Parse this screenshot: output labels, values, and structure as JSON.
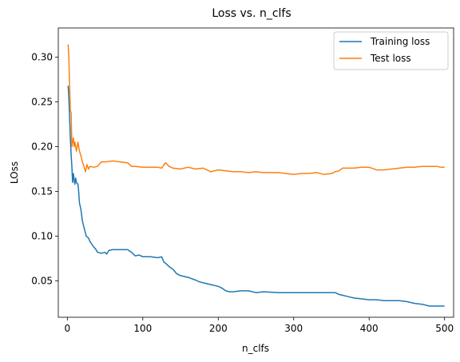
{
  "chart_data": {
    "type": "line",
    "title": "Loss vs. n_clfs",
    "xlabel": "n_clfs",
    "ylabel": "LOss",
    "xlim": [
      -12,
      512
    ],
    "ylim": [
      0.0095,
      0.3325
    ],
    "xticks": [
      0,
      100,
      200,
      300,
      400,
      500
    ],
    "xtick_labels": [
      "0",
      "100",
      "200",
      "300",
      "400",
      "500"
    ],
    "yticks": [
      0.05,
      0.1,
      0.15,
      0.2,
      0.25,
      0.3
    ],
    "ytick_labels": [
      "0.05",
      "0.10",
      "0.15",
      "0.20",
      "0.25",
      "0.30"
    ],
    "grid": false,
    "legend_position": "top-right",
    "series": [
      {
        "name": "Training loss",
        "color": "#1f77b4",
        "points": [
          [
            1,
            0.268
          ],
          [
            2,
            0.255
          ],
          [
            3,
            0.231
          ],
          [
            4,
            0.21
          ],
          [
            5,
            0.19
          ],
          [
            6,
            0.178
          ],
          [
            7,
            0.16
          ],
          [
            8,
            0.17
          ],
          [
            9,
            0.163
          ],
          [
            10,
            0.158
          ],
          [
            11,
            0.165
          ],
          [
            12,
            0.16
          ],
          [
            14,
            0.158
          ],
          [
            15,
            0.15
          ],
          [
            16,
            0.137
          ],
          [
            18,
            0.13
          ],
          [
            20,
            0.117
          ],
          [
            22,
            0.11
          ],
          [
            25,
            0.1
          ],
          [
            28,
            0.098
          ],
          [
            30,
            0.094
          ],
          [
            35,
            0.088
          ],
          [
            38,
            0.085
          ],
          [
            40,
            0.082
          ],
          [
            45,
            0.081
          ],
          [
            50,
            0.082
          ],
          [
            52,
            0.08
          ],
          [
            55,
            0.084
          ],
          [
            60,
            0.085
          ],
          [
            70,
            0.085
          ],
          [
            80,
            0.085
          ],
          [
            85,
            0.082
          ],
          [
            90,
            0.078
          ],
          [
            95,
            0.079
          ],
          [
            100,
            0.077
          ],
          [
            110,
            0.077
          ],
          [
            120,
            0.076
          ],
          [
            125,
            0.077
          ],
          [
            128,
            0.071
          ],
          [
            130,
            0.07
          ],
          [
            135,
            0.066
          ],
          [
            140,
            0.063
          ],
          [
            145,
            0.058
          ],
          [
            150,
            0.056
          ],
          [
            160,
            0.054
          ],
          [
            170,
            0.051
          ],
          [
            175,
            0.049
          ],
          [
            180,
            0.048
          ],
          [
            190,
            0.046
          ],
          [
            200,
            0.044
          ],
          [
            205,
            0.042
          ],
          [
            210,
            0.039
          ],
          [
            215,
            0.038
          ],
          [
            220,
            0.038
          ],
          [
            230,
            0.039
          ],
          [
            240,
            0.039
          ],
          [
            250,
            0.037
          ],
          [
            260,
            0.038
          ],
          [
            280,
            0.037
          ],
          [
            300,
            0.037
          ],
          [
            320,
            0.037
          ],
          [
            340,
            0.037
          ],
          [
            355,
            0.037
          ],
          [
            360,
            0.035
          ],
          [
            365,
            0.034
          ],
          [
            370,
            0.033
          ],
          [
            375,
            0.032
          ],
          [
            380,
            0.031
          ],
          [
            390,
            0.03
          ],
          [
            400,
            0.029
          ],
          [
            410,
            0.029
          ],
          [
            420,
            0.028
          ],
          [
            430,
            0.028
          ],
          [
            440,
            0.028
          ],
          [
            450,
            0.027
          ],
          [
            460,
            0.025
          ],
          [
            470,
            0.024
          ],
          [
            480,
            0.022
          ],
          [
            490,
            0.022
          ],
          [
            498,
            0.022
          ],
          [
            500,
            0.022
          ]
        ]
      },
      {
        "name": "Test loss",
        "color": "#ff7f0e",
        "points": [
          [
            1,
            0.314
          ],
          [
            2,
            0.3
          ],
          [
            3,
            0.265
          ],
          [
            4,
            0.24
          ],
          [
            5,
            0.238
          ],
          [
            6,
            0.2
          ],
          [
            7,
            0.205
          ],
          [
            8,
            0.21
          ],
          [
            9,
            0.2
          ],
          [
            10,
            0.205
          ],
          [
            12,
            0.195
          ],
          [
            14,
            0.205
          ],
          [
            16,
            0.195
          ],
          [
            18,
            0.19
          ],
          [
            20,
            0.183
          ],
          [
            22,
            0.178
          ],
          [
            24,
            0.172
          ],
          [
            26,
            0.18
          ],
          [
            28,
            0.175
          ],
          [
            30,
            0.178
          ],
          [
            35,
            0.177
          ],
          [
            40,
            0.178
          ],
          [
            45,
            0.183
          ],
          [
            50,
            0.183
          ],
          [
            60,
            0.184
          ],
          [
            70,
            0.183
          ],
          [
            80,
            0.182
          ],
          [
            85,
            0.178
          ],
          [
            90,
            0.178
          ],
          [
            100,
            0.177
          ],
          [
            110,
            0.177
          ],
          [
            120,
            0.177
          ],
          [
            125,
            0.176
          ],
          [
            130,
            0.182
          ],
          [
            135,
            0.178
          ],
          [
            140,
            0.176
          ],
          [
            150,
            0.175
          ],
          [
            160,
            0.177
          ],
          [
            170,
            0.175
          ],
          [
            180,
            0.176
          ],
          [
            190,
            0.172
          ],
          [
            200,
            0.174
          ],
          [
            210,
            0.173
          ],
          [
            220,
            0.172
          ],
          [
            230,
            0.172
          ],
          [
            240,
            0.171
          ],
          [
            250,
            0.172
          ],
          [
            260,
            0.171
          ],
          [
            270,
            0.171
          ],
          [
            280,
            0.171
          ],
          [
            290,
            0.17
          ],
          [
            300,
            0.169
          ],
          [
            310,
            0.17
          ],
          [
            320,
            0.17
          ],
          [
            330,
            0.171
          ],
          [
            340,
            0.169
          ],
          [
            350,
            0.17
          ],
          [
            355,
            0.172
          ],
          [
            360,
            0.173
          ],
          [
            365,
            0.176
          ],
          [
            370,
            0.176
          ],
          [
            380,
            0.176
          ],
          [
            390,
            0.177
          ],
          [
            400,
            0.177
          ],
          [
            410,
            0.174
          ],
          [
            420,
            0.174
          ],
          [
            430,
            0.175
          ],
          [
            440,
            0.176
          ],
          [
            450,
            0.177
          ],
          [
            460,
            0.177
          ],
          [
            470,
            0.178
          ],
          [
            480,
            0.178
          ],
          [
            490,
            0.178
          ],
          [
            495,
            0.177
          ],
          [
            500,
            0.177
          ]
        ]
      }
    ]
  }
}
